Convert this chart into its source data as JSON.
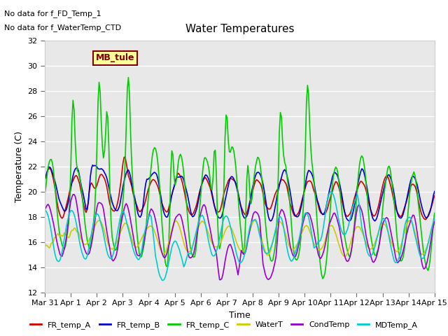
{
  "title": "Water Temperatures",
  "xlabel": "Time",
  "ylabel": "Temperature (C)",
  "ylim": [
    12,
    32
  ],
  "yticks": [
    12,
    14,
    16,
    18,
    20,
    22,
    24,
    26,
    28,
    30,
    32
  ],
  "bg_color": "#e8e8e8",
  "plot_bg": "#e8e8e8",
  "annotations": [
    "No data for f_FD_Temp_1",
    "No data for f_WaterTemp_CTD"
  ],
  "legend_box_label": "MB_tule",
  "series_colors": {
    "FR_temp_A": "#cc0000",
    "FR_temp_B": "#0000cc",
    "FR_temp_C": "#00cc00",
    "WaterT": "#cccc00",
    "CondTemp": "#9900cc",
    "MDTemp_A": "#00cccc"
  },
  "xtick_labels": [
    "Mar 31",
    "Apr 1",
    "Apr 2",
    "Apr 3",
    "Apr 4",
    "Apr 5",
    "Apr 6",
    "Apr 7",
    "Apr 8",
    "Apr 9",
    "Apr 10",
    "Apr 11",
    "Apr 12",
    "Apr 13",
    "Apr 14",
    "Apr 15"
  ],
  "n_points": 360
}
